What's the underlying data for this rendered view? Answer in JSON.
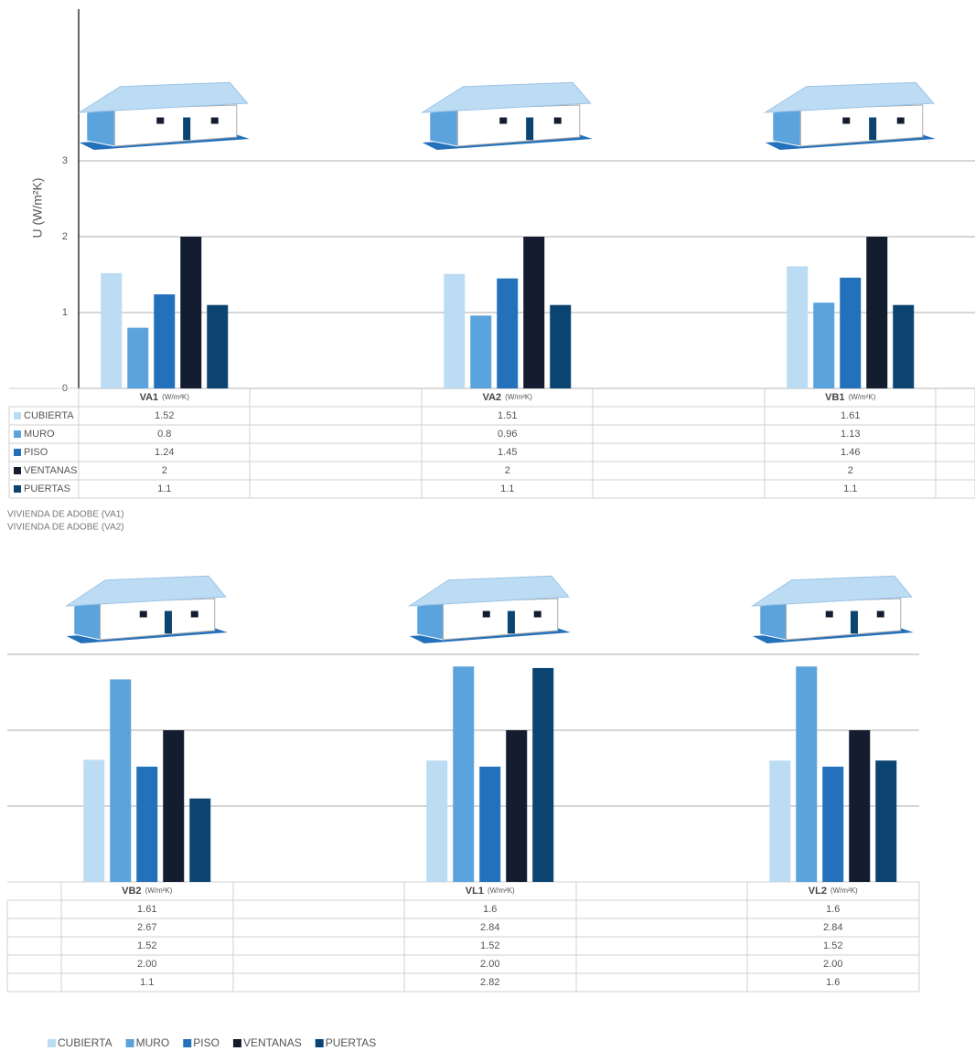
{
  "chart_data": [
    {
      "type": "bar",
      "y_label": "U (W/m²K)",
      "unit": "(W/m²K)",
      "categories": [
        "VA1",
        "VA2",
        "VB1"
      ],
      "series": [
        {
          "name": "CUBIERTA",
          "color": "#bcdcf4",
          "values": [
            1.52,
            1.51,
            1.61
          ]
        },
        {
          "name": "MURO",
          "color": "#5ba3dc",
          "values": [
            0.8,
            0.96,
            1.13
          ]
        },
        {
          "name": "PISO",
          "color": "#2471bb",
          "values": [
            1.24,
            1.45,
            1.46
          ]
        },
        {
          "name": "VENTANAS",
          "color": "#141c30",
          "values": [
            2,
            2,
            2
          ]
        },
        {
          "name": "PUERTAS",
          "color": "#0b4471",
          "values": [
            1.1,
            1.1,
            1.1
          ]
        }
      ],
      "ylim": [
        0,
        5
      ],
      "yticks": [
        0,
        1,
        2,
        3
      ],
      "grid": true,
      "tick_labels": true,
      "notes": [
        "VIVIENDA DE ADOBE (VA1)",
        "VIVIENDA DE ADOBE (VA2)"
      ]
    },
    {
      "type": "bar",
      "unit": "(W/m²K)",
      "categories": [
        "VB2",
        "VL1",
        "VL2"
      ],
      "series": [
        {
          "name": "CUBIERTA",
          "color": "#bcdcf4",
          "values": [
            1.61,
            1.6,
            1.6
          ]
        },
        {
          "name": "MURO",
          "color": "#5ba3dc",
          "values": [
            2.67,
            2.84,
            2.84
          ]
        },
        {
          "name": "PISO",
          "color": "#2471bb",
          "values": [
            1.52,
            1.52,
            1.52
          ]
        },
        {
          "name": "VENTANAS",
          "color": "#141c30",
          "values": [
            2,
            2,
            2
          ],
          "value_labels": [
            "2.00",
            "2.00",
            "2.00"
          ]
        },
        {
          "name": "PUERTAS",
          "color": "#0b4471",
          "values": [
            1.1,
            2.82,
            1.6
          ]
        }
      ],
      "ylim": [
        0,
        3
      ],
      "yticks": [
        1,
        2,
        3
      ],
      "grid": true,
      "tick_labels": false,
      "legend": "bottom-left"
    }
  ]
}
